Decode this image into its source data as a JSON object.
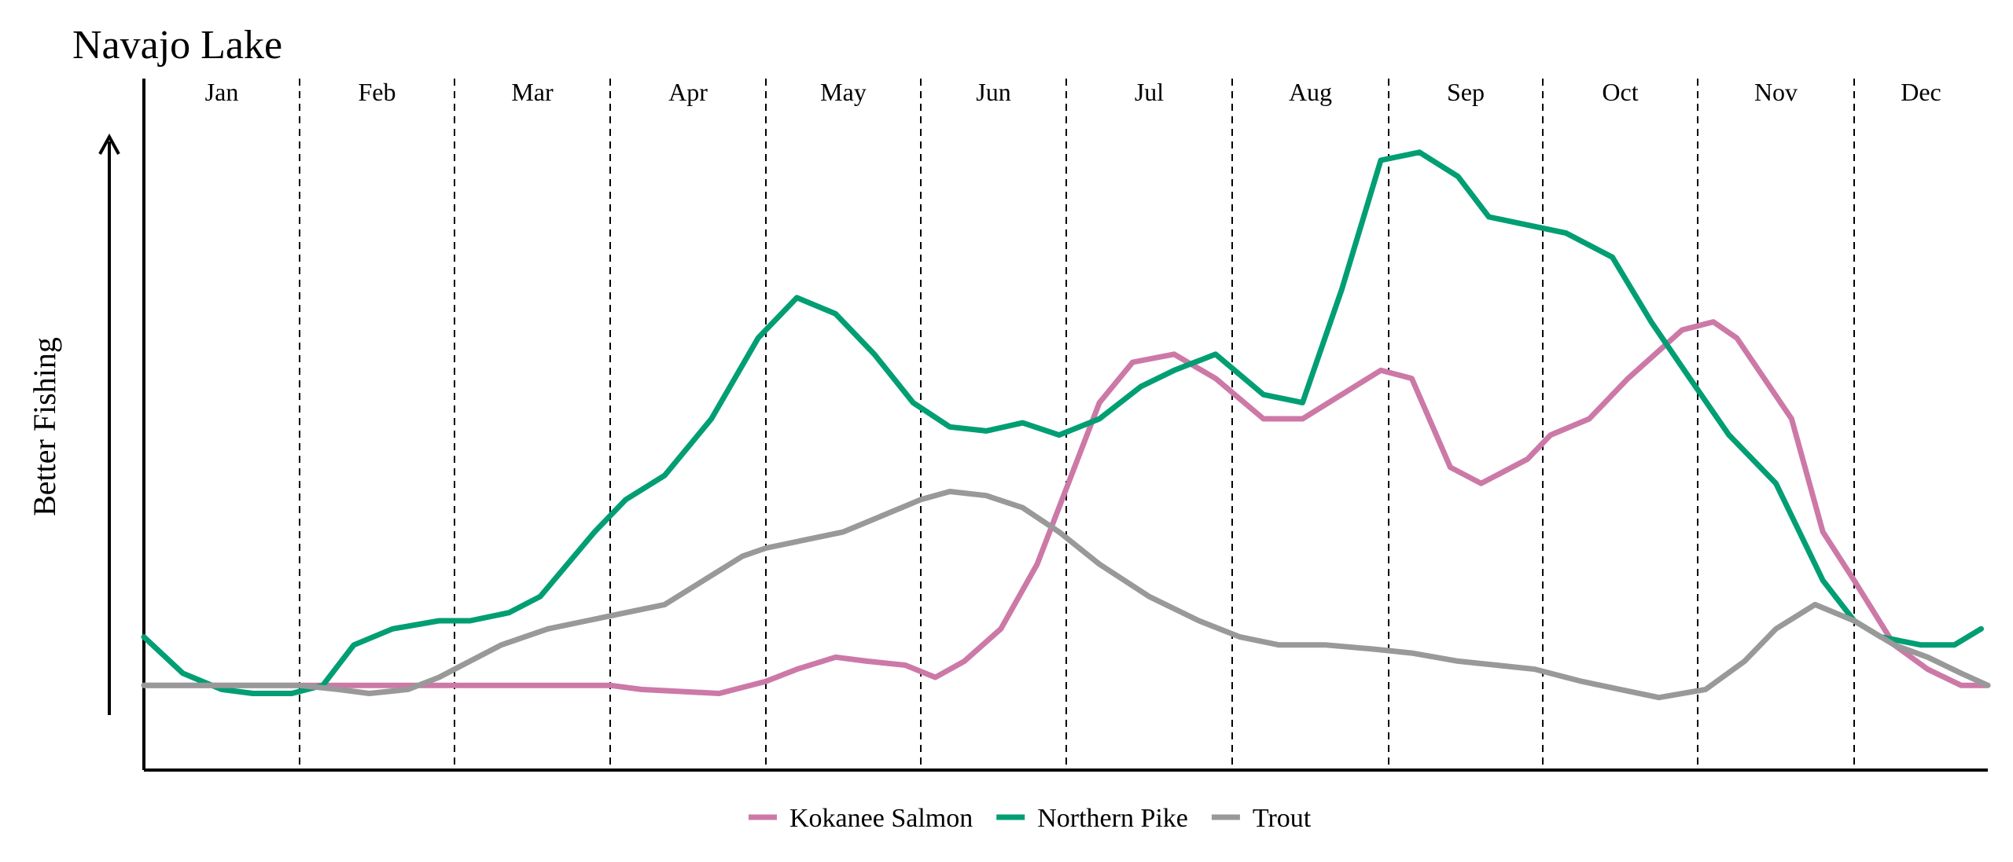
{
  "chart_data": {
    "type": "line",
    "title": "Navajo Lake",
    "ylabel": "Better Fishing",
    "xlabel": "",
    "month_labels": [
      "Jan",
      "Feb",
      "Mar",
      "Apr",
      "May",
      "Jun",
      "Jul",
      "Aug",
      "Sep",
      "Oct",
      "Nov",
      "Dec"
    ],
    "xlim": [
      0,
      12
    ],
    "ylim": [
      0,
      100
    ],
    "grid": "vertical dashed month separators",
    "legend_position": "bottom-center",
    "series": [
      {
        "name": "Kokanee Salmon",
        "color": "#cc79a7",
        "x": [
          0,
          1,
          2,
          3,
          3.2,
          3.7,
          4.0,
          4.2,
          4.45,
          4.65,
          4.9,
          5.1,
          5.3,
          5.55,
          5.8,
          6.2,
          6.4,
          6.65,
          6.9,
          7.2,
          7.45,
          7.95,
          8.15,
          8.4,
          8.6,
          8.9,
          9.05,
          9.3,
          9.55,
          9.9,
          10.1,
          10.25,
          10.6,
          10.8,
          11.0,
          11.3,
          11.55,
          11.8,
          12.0
        ],
        "y": [
          17,
          17,
          17,
          17,
          16.5,
          16,
          17.5,
          19,
          20.5,
          20,
          19.5,
          18,
          20,
          24,
          32,
          52,
          57,
          58,
          55,
          50,
          50,
          56,
          55,
          44,
          42,
          45,
          48,
          50,
          55,
          61,
          62,
          60,
          50,
          36,
          30,
          22,
          19,
          17,
          17
        ]
      },
      {
        "name": "Northern Pike",
        "color": "#009e73",
        "x": [
          0,
          0.25,
          0.5,
          0.7,
          0.95,
          1.15,
          1.35,
          1.6,
          1.9,
          2.1,
          2.35,
          2.55,
          2.9,
          3.1,
          3.35,
          3.65,
          3.95,
          4.2,
          4.45,
          4.7,
          4.95,
          5.2,
          5.45,
          5.7,
          5.95,
          6.2,
          6.45,
          6.65,
          6.9,
          7.2,
          7.45,
          7.7,
          7.95,
          8.2,
          8.45,
          8.65,
          8.9,
          9.15,
          9.45,
          9.7,
          9.95,
          10.2,
          10.5,
          10.8,
          11.0,
          11.2,
          11.5,
          11.75,
          11.95
        ],
        "y": [
          23,
          18.5,
          16.5,
          16,
          16,
          17,
          22,
          24,
          25,
          25,
          26,
          28,
          36,
          40,
          43,
          50,
          60,
          65,
          63,
          58,
          52,
          49,
          48.5,
          49.5,
          48,
          50,
          54,
          56,
          58,
          53,
          52,
          66,
          82,
          83,
          80,
          75,
          74,
          73,
          70,
          62,
          55,
          48,
          42,
          30,
          25,
          23,
          22,
          22,
          24
        ]
      },
      {
        "name": "Trout",
        "color": "#999999",
        "x": [
          0,
          0.5,
          0.75,
          1.0,
          1.25,
          1.45,
          1.7,
          1.9,
          2.1,
          2.3,
          2.6,
          2.85,
          3.1,
          3.35,
          3.6,
          3.85,
          4.0,
          4.25,
          4.5,
          4.75,
          5.0,
          5.2,
          5.45,
          5.7,
          5.95,
          6.2,
          6.5,
          6.8,
          7.05,
          7.3,
          7.6,
          7.9,
          8.15,
          8.45,
          8.7,
          8.95,
          9.25,
          9.5,
          9.75,
          10.05,
          10.3,
          10.5,
          10.75,
          11.0,
          11.3,
          11.55,
          11.8,
          12.0
        ],
        "y": [
          17,
          17,
          17,
          17,
          16.5,
          16,
          16.5,
          18,
          20,
          22,
          24,
          25,
          26,
          27,
          30,
          33,
          34,
          35,
          36,
          38,
          40,
          41,
          40.5,
          39,
          36,
          32,
          28,
          25,
          23,
          22,
          22,
          21.5,
          21,
          20,
          19.5,
          19,
          17.5,
          16.5,
          15.5,
          16.5,
          20,
          24,
          27,
          25,
          22,
          20.5,
          18.5,
          17
        ]
      }
    ]
  }
}
